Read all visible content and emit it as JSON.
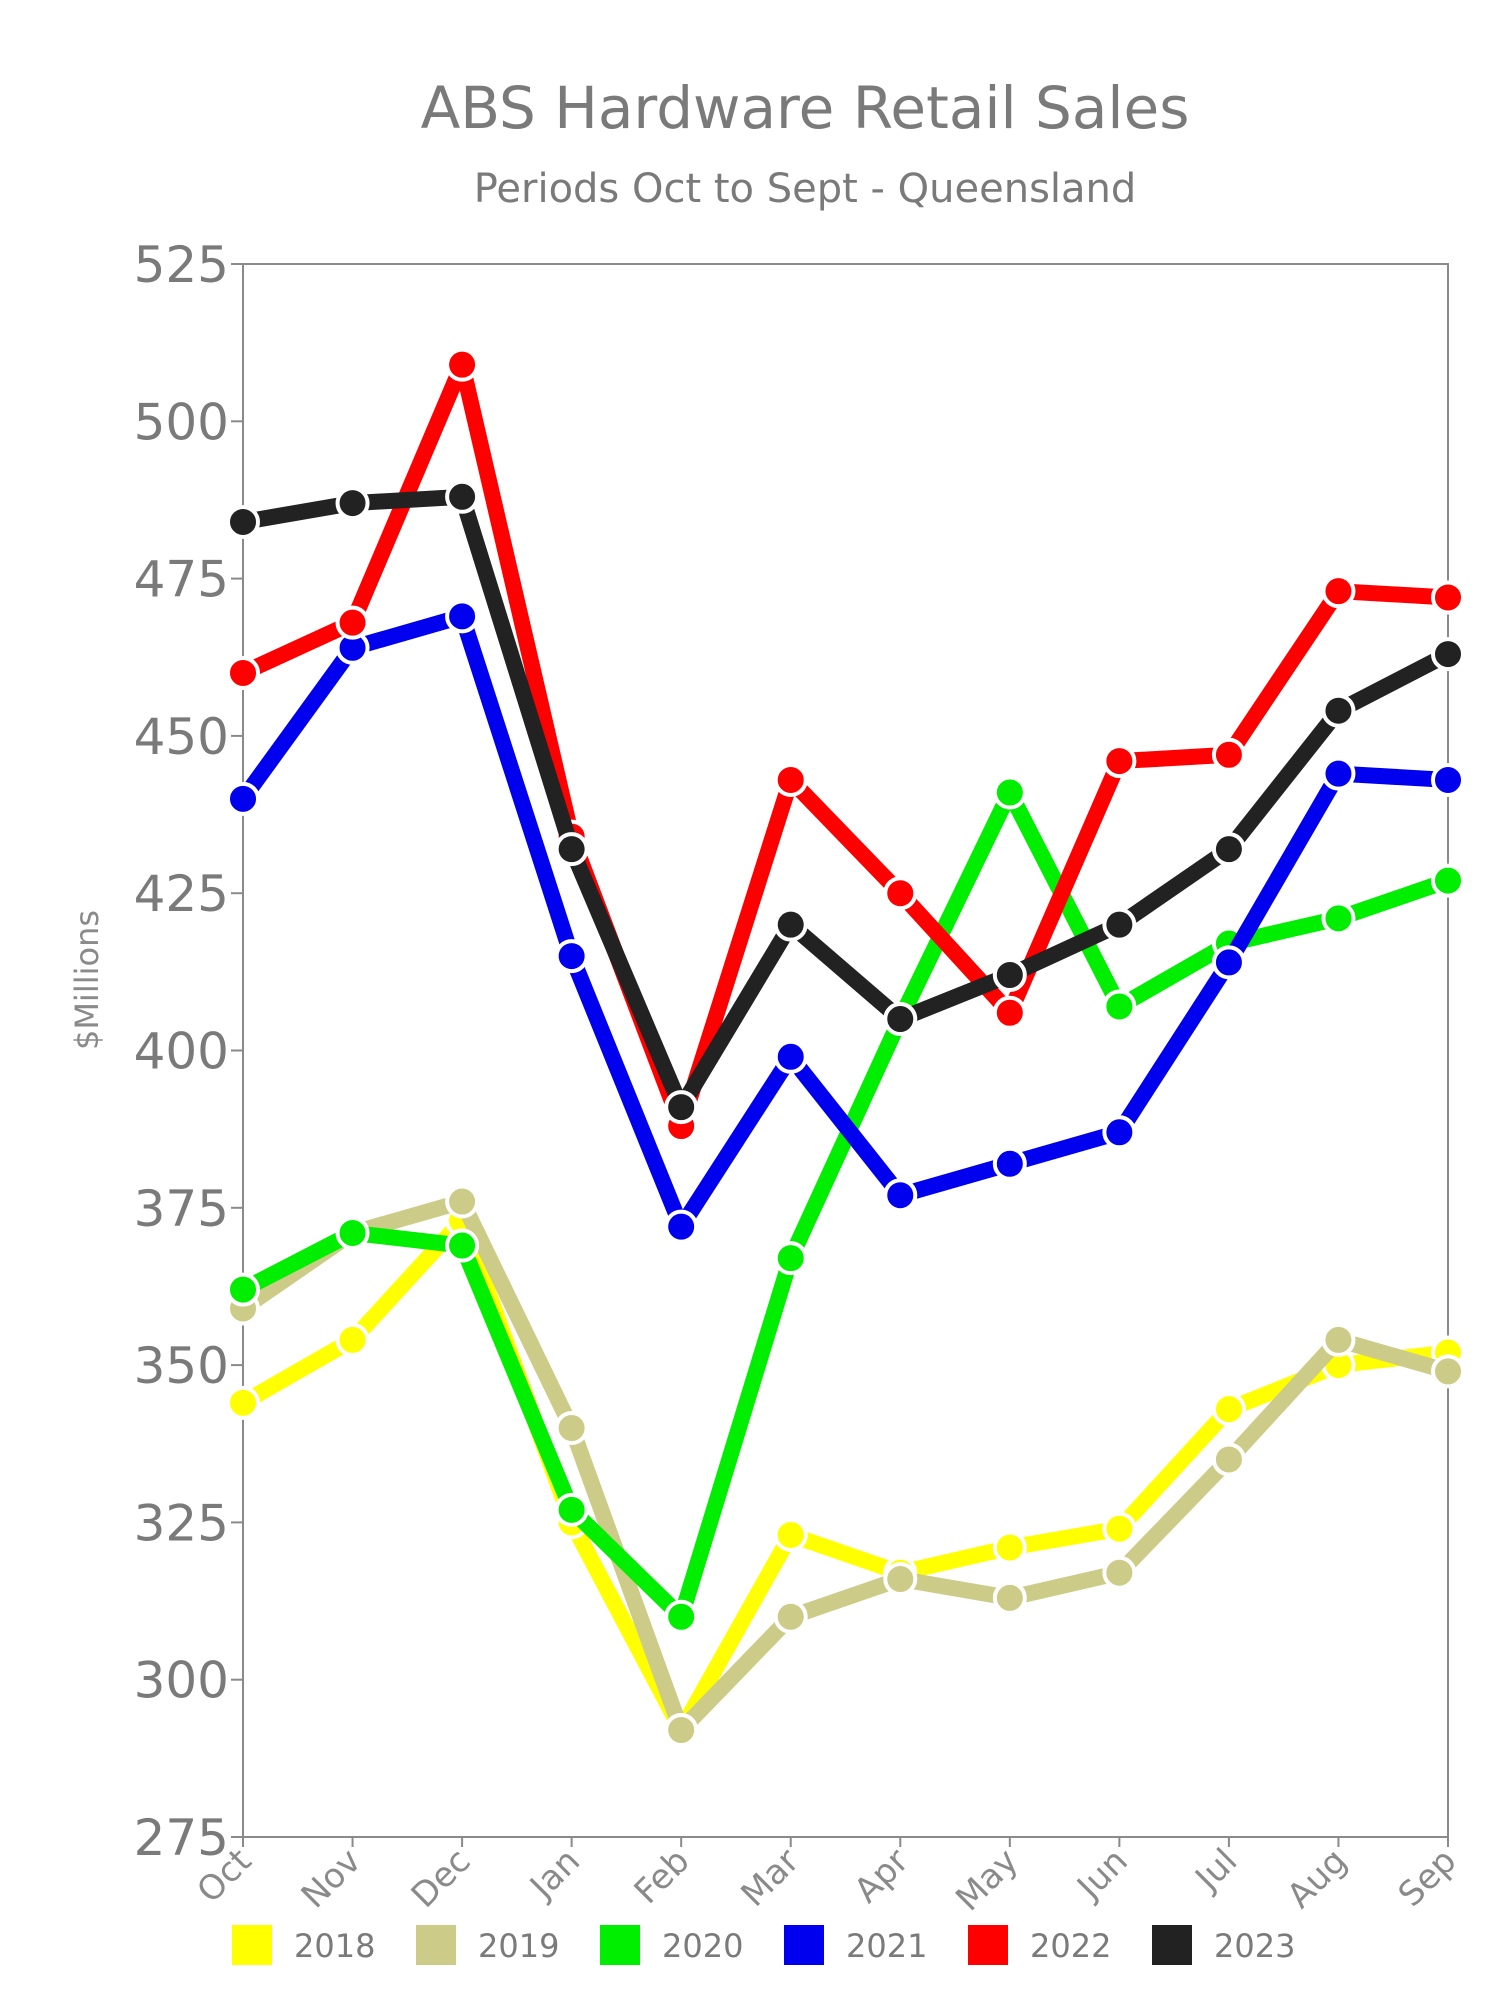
{
  "chart_data": {
    "type": "line",
    "title": "ABS Hardware Retail Sales",
    "subtitle": "Periods Oct to Sept - Queensland",
    "ylabel": "$Millions",
    "xlabel": "",
    "ylim": [
      275,
      525
    ],
    "yticks": [
      275,
      300,
      325,
      350,
      375,
      400,
      425,
      450,
      475,
      500,
      525
    ],
    "categories": [
      "Oct",
      "Nov",
      "Dec",
      "Jan",
      "Feb",
      "Mar",
      "Apr",
      "May",
      "Jun",
      "Jul",
      "Aug",
      "Sep"
    ],
    "legend_position": "bottom",
    "series": [
      {
        "name": "2018",
        "color": "#ffff00",
        "values": [
          344,
          354,
          373,
          325,
          292,
          323,
          317,
          321,
          324,
          343,
          350,
          352
        ]
      },
      {
        "name": "2019",
        "color": "#cccc88",
        "values": [
          359,
          371,
          376,
          340,
          292,
          310,
          316,
          313,
          317,
          335,
          354,
          349
        ]
      },
      {
        "name": "2020",
        "color": "#00ee00",
        "values": [
          362,
          371,
          369,
          327,
          310,
          367,
          405,
          441,
          407,
          417,
          421,
          427
        ]
      },
      {
        "name": "2021",
        "color": "#0000ee",
        "values": [
          440,
          464,
          469,
          415,
          372,
          399,
          377,
          382,
          387,
          414,
          444,
          443
        ]
      },
      {
        "name": "2022",
        "color": "#ff0000",
        "values": [
          460,
          468,
          509,
          434,
          388,
          443,
          425,
          406,
          446,
          447,
          473,
          472
        ]
      },
      {
        "name": "2023",
        "color": "#222222",
        "values": [
          484,
          487,
          488,
          432,
          391,
          420,
          405,
          412,
          420,
          432,
          454,
          463
        ]
      }
    ]
  }
}
